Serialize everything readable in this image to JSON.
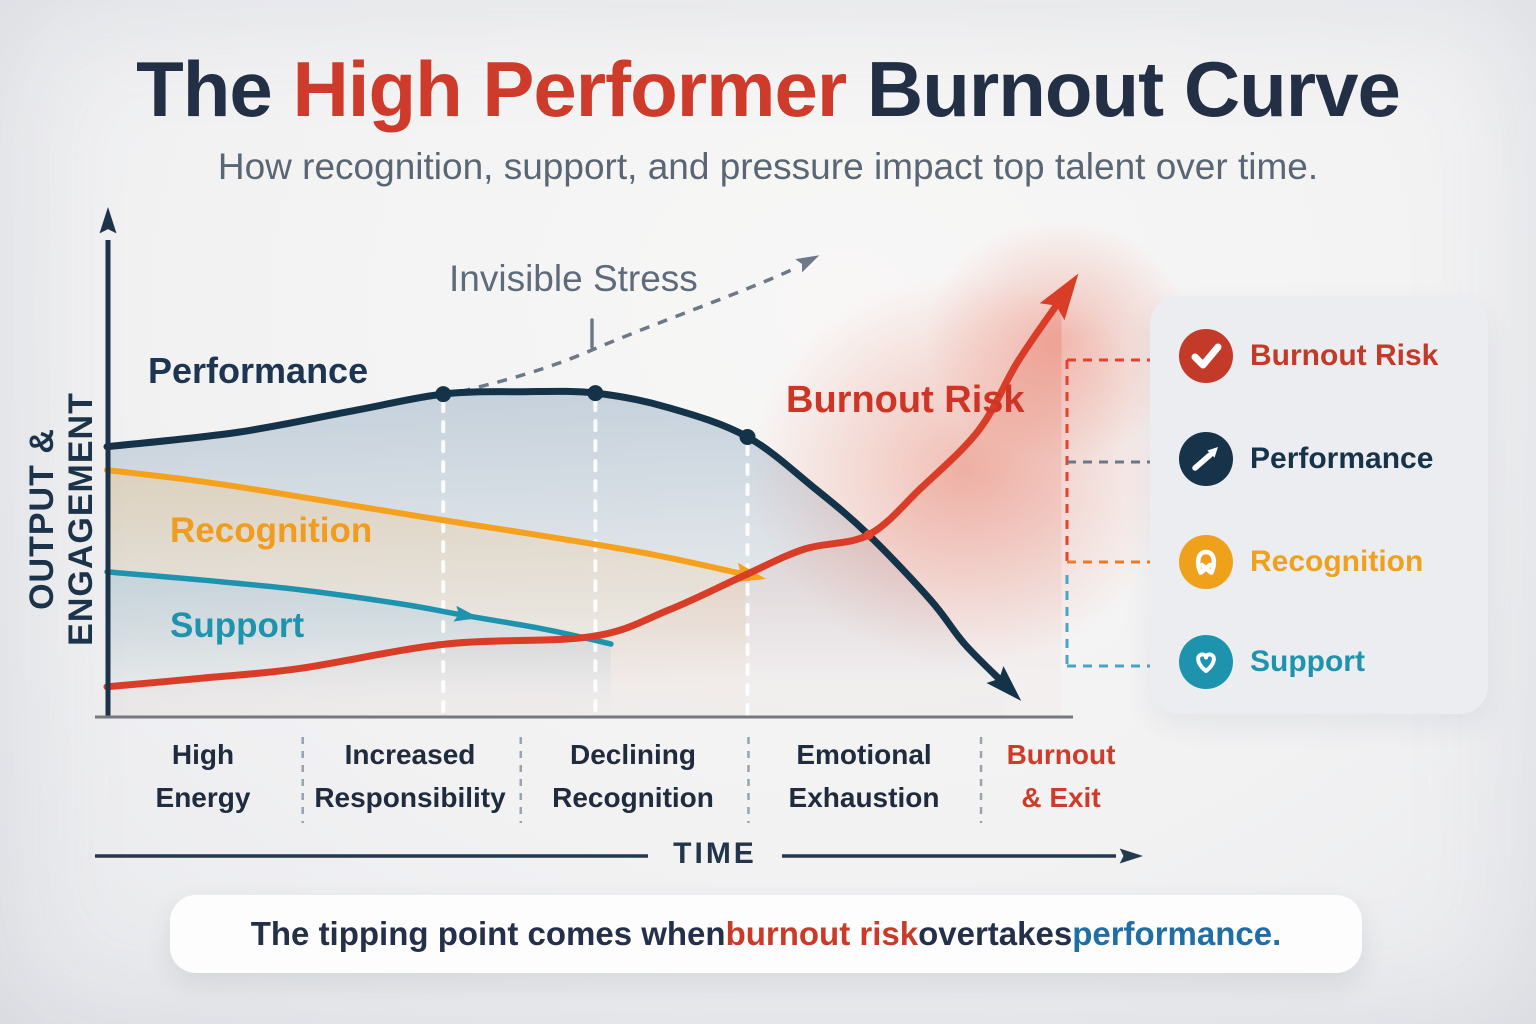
{
  "page": {
    "title_parts": [
      {
        "text": "The ",
        "color": "#232f45"
      },
      {
        "text": "High Performer",
        "color": "#ce3b2a"
      },
      {
        "text": " Burnout Curve",
        "color": "#232f45"
      }
    ],
    "subtitle": "How recognition, support, and pressure impact top talent over time."
  },
  "colors": {
    "performance": "#143349",
    "burnout": "#d93d28",
    "recognition": "#f5a11d",
    "support": "#1e93ad",
    "axis": "#1d3349",
    "baseline": "#75797f",
    "stress_annotation": "#6d7888",
    "stage_separator": "#9aa2ad",
    "background": "#f2f2f3"
  },
  "axis": {
    "x_label": "TIME",
    "y_label": "OUTPUT & ENGAGEMENT"
  },
  "chart_data": {
    "type": "line",
    "title": "The High Performer Burnout Curve",
    "xlabel": "TIME",
    "ylabel": "OUTPUT & ENGAGEMENT",
    "x_range": [
      0,
      100
    ],
    "y_range": [
      0,
      100
    ],
    "grid": false,
    "legend_position": "right-panel",
    "guides_x": [
      34.7,
      50.4,
      66.1
    ],
    "stage_boundaries_x": [
      20.2,
      42.7,
      66.2,
      90.2
    ],
    "series": [
      {
        "name": "Performance",
        "color": "#143349",
        "width": 7,
        "z": 3,
        "arrow_size": 24,
        "fill_color": "#9fb4c7",
        "fill_opacity": 0.55,
        "points": [
          [
            0,
            55.5
          ],
          [
            13.6,
            58.5
          ],
          [
            25.7,
            63
          ],
          [
            34.7,
            66.3
          ],
          [
            43,
            66.8
          ],
          [
            50.4,
            66.5
          ],
          [
            58,
            63.5
          ],
          [
            66.1,
            57.5
          ],
          [
            73,
            47
          ],
          [
            78.6,
            37.4
          ],
          [
            85,
            24
          ],
          [
            88.5,
            15
          ],
          [
            92.6,
            6.8
          ]
        ],
        "dots_x": [
          34.7,
          50.4,
          66.1
        ],
        "arrow_end": true
      },
      {
        "name": "Recognition",
        "color": "#f5a11d",
        "width": 6,
        "z": 2,
        "arrow_size": 20,
        "fill_color": "#f3c98e",
        "fill_opacity": 0.4,
        "points": [
          [
            0,
            50.7
          ],
          [
            10,
            48.3
          ],
          [
            20,
            45.2
          ],
          [
            32.5,
            41.1
          ],
          [
            45,
            37.2
          ],
          [
            56,
            33.5
          ],
          [
            66,
            29.2
          ]
        ],
        "arrow_end": true
      },
      {
        "name": "Support",
        "color": "#1e93ad",
        "width": 5.5,
        "z": 1,
        "arrow_size": 16,
        "fill_color": "#aecde4",
        "fill_opacity": 0.55,
        "points": [
          [
            0,
            29.8
          ],
          [
            10,
            28.1
          ],
          [
            20,
            26.1
          ],
          [
            30.4,
            23.2
          ],
          [
            36.8,
            20.9
          ],
          [
            45,
            18.1
          ],
          [
            52,
            15
          ]
        ],
        "arrow_at_x": 36.8
      },
      {
        "name": "Burnout Risk",
        "color": "#d93d28",
        "width": 7,
        "z": 4,
        "arrow_size": 30,
        "fill_color": "#e06a55",
        "fill_opacity": 0.28,
        "points": [
          [
            0,
            6.2
          ],
          [
            10,
            8
          ],
          [
            20,
            10
          ],
          [
            35,
            15
          ],
          [
            50,
            16.5
          ],
          [
            58,
            22
          ],
          [
            65.7,
            29
          ],
          [
            72,
            34.5
          ],
          [
            78.6,
            37.4
          ],
          [
            84,
            47
          ],
          [
            90,
            59
          ],
          [
            94,
            73
          ],
          [
            98.5,
            86
          ]
        ],
        "arrow_end": true
      }
    ],
    "crossing_point": {
      "x": 78.6,
      "y": 37.4,
      "note": "burnout risk overtakes performance"
    },
    "curve_labels": [
      {
        "id": "performance",
        "text": "Performance",
        "color": "#1d3550"
      },
      {
        "id": "recognition",
        "text": "Recognition",
        "color": "#f09c1e"
      },
      {
        "id": "support",
        "text": "Support",
        "color": "#1e93ad"
      },
      {
        "id": "burnout",
        "text": "Burnout Risk",
        "color": "#cf3527"
      },
      {
        "id": "stress",
        "text": "Invisible Stress",
        "color": "#5f6b7a"
      }
    ]
  },
  "stages": {
    "items": [
      {
        "line1": "High",
        "line2": "Energy",
        "color": "#202c3e"
      },
      {
        "line1": "Increased",
        "line2": "Responsibility",
        "color": "#202c3e"
      },
      {
        "line1": "Declining",
        "line2": "Recognition",
        "color": "#202c3e"
      },
      {
        "line1": "Emotional",
        "line2": "Exhaustion",
        "color": "#202c3e"
      },
      {
        "line1": "Burnout",
        "line2": "& Exit",
        "color": "#ce3b2a"
      }
    ]
  },
  "legend": {
    "items": [
      {
        "label": "Burnout Risk",
        "color": "#c43a28",
        "icon": "check-icon"
      },
      {
        "label": "Performance",
        "color": "#163349",
        "icon": "trend-up-icon"
      },
      {
        "label": "Recognition",
        "color": "#f0a11c",
        "icon": "ribbon-icon"
      },
      {
        "label": "Support",
        "color": "#1e93ad",
        "icon": "heart-icon"
      }
    ]
  },
  "banner": {
    "parts": [
      {
        "text": "The tipping point comes when ",
        "color": "#24304a"
      },
      {
        "text": "burnout risk",
        "color": "#cb3927"
      },
      {
        "text": " overtakes ",
        "color": "#24304a"
      },
      {
        "text": "performance.",
        "color": "#1f6ea6"
      }
    ]
  }
}
